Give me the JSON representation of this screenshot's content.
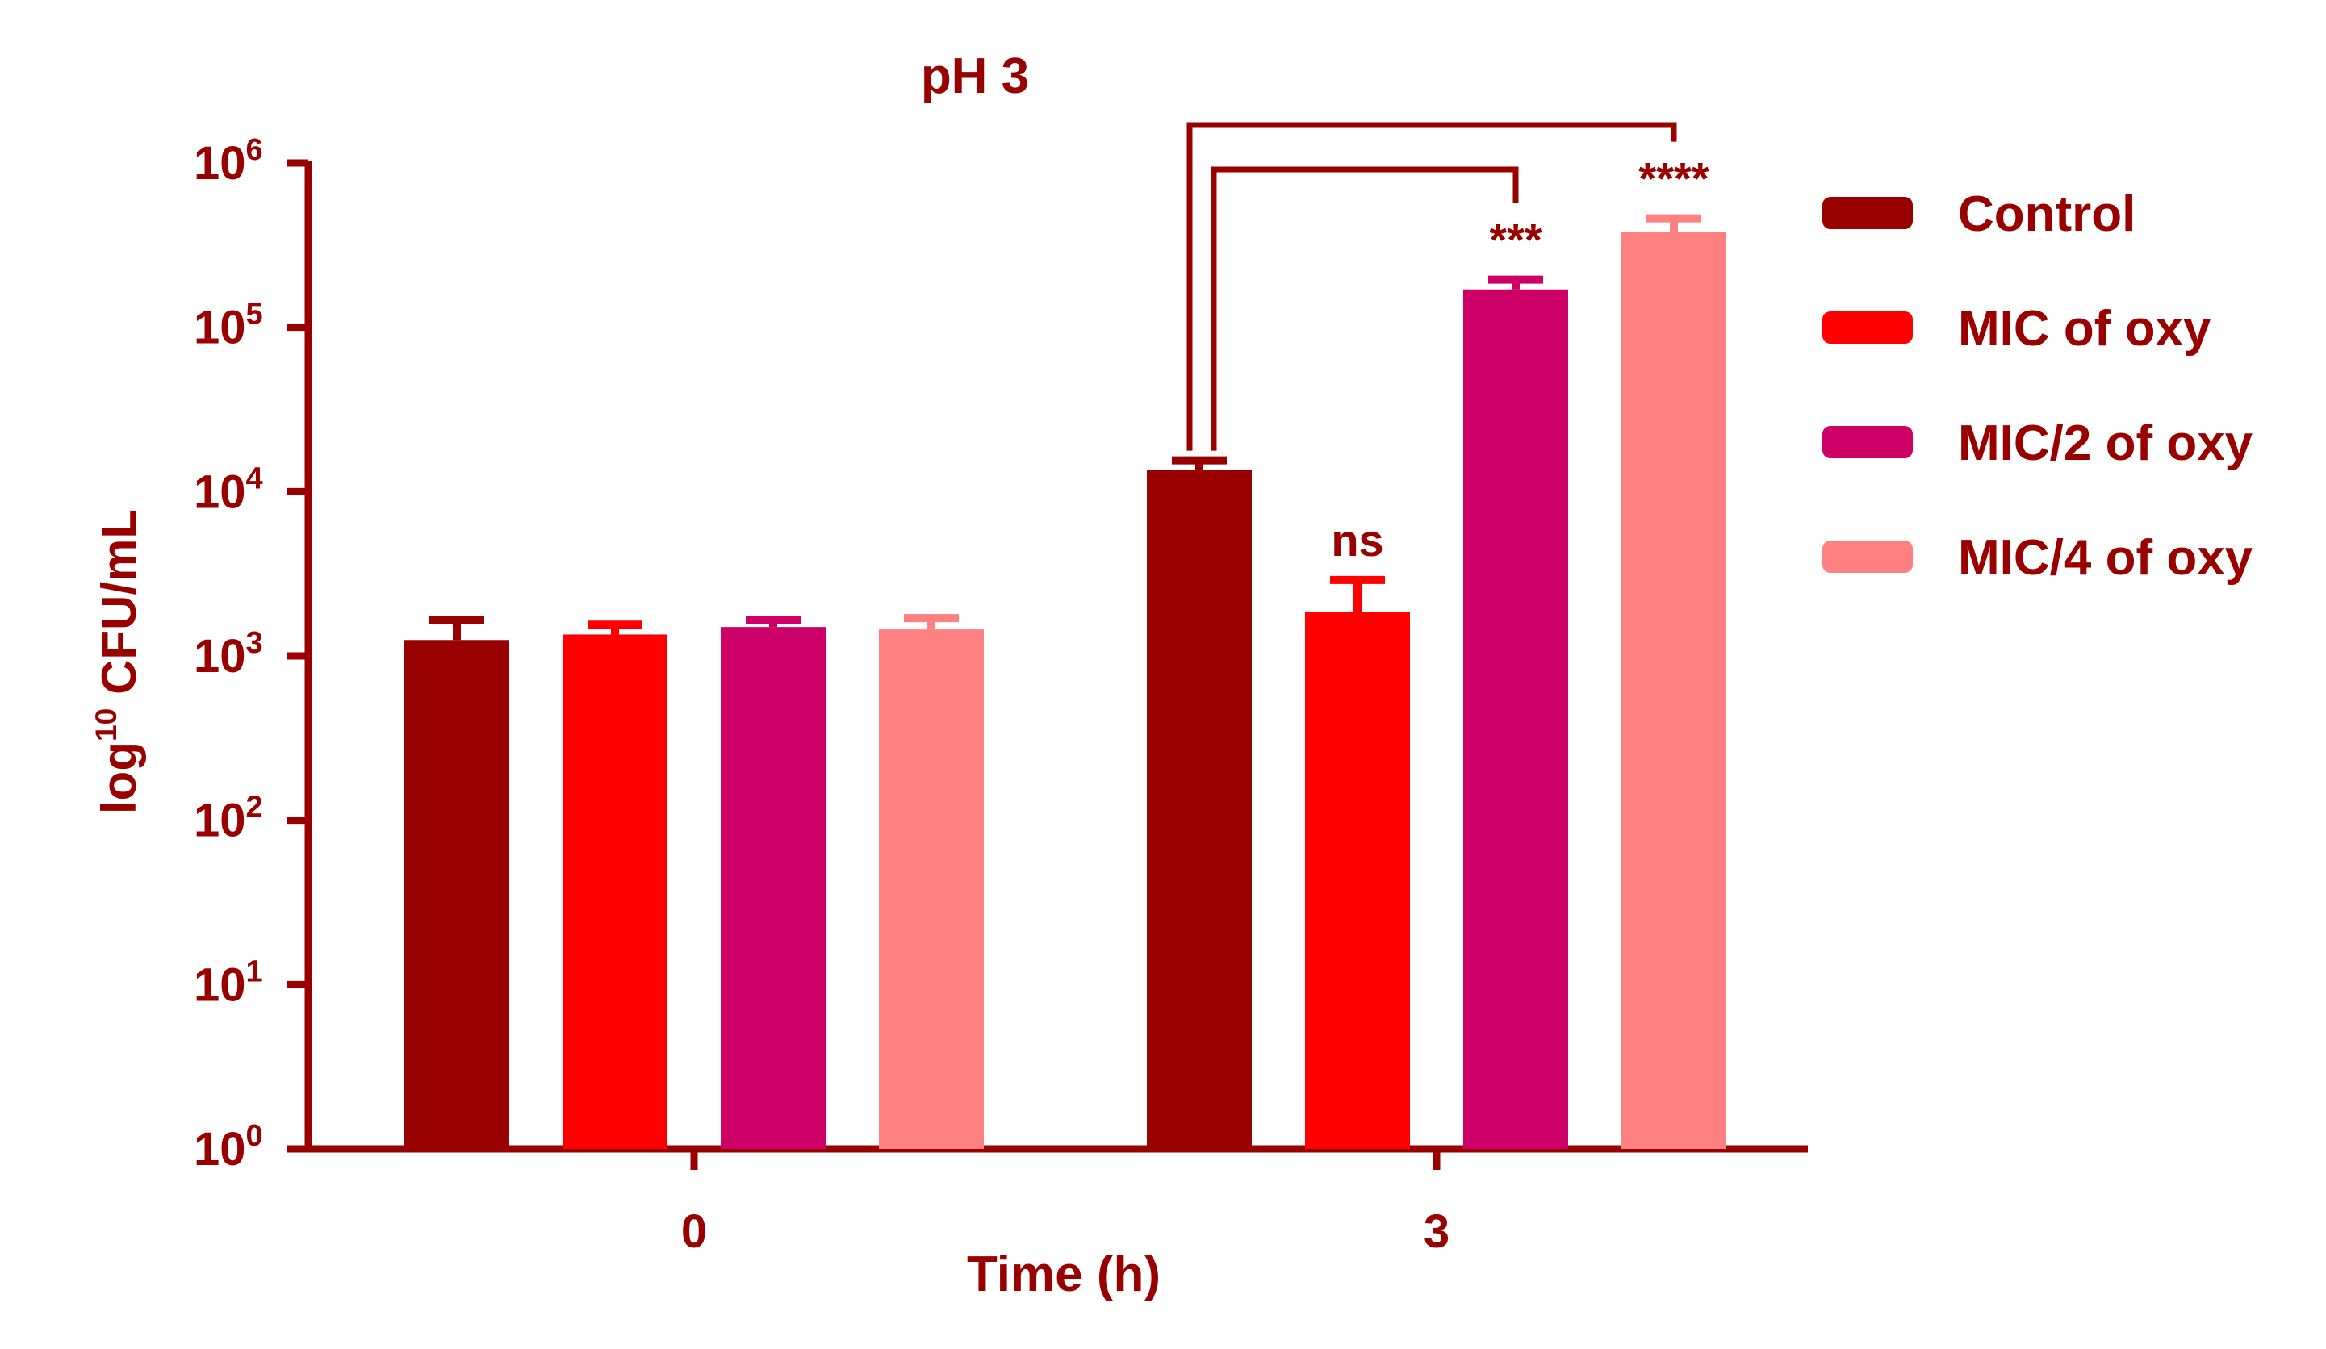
{
  "chart_data": {
    "type": "bar",
    "title": "pH 3",
    "xlabel": "Time (h)",
    "ylabel": {
      "base": "log",
      "sup": "10",
      "rest": " CFU/mL"
    },
    "yscale": "log",
    "ylim": [
      1,
      1000000
    ],
    "yticks": [
      {
        "base": "10",
        "exp": "0",
        "value": 1
      },
      {
        "base": "10",
        "exp": "1",
        "value": 10
      },
      {
        "base": "10",
        "exp": "2",
        "value": 100
      },
      {
        "base": "10",
        "exp": "3",
        "value": 1000
      },
      {
        "base": "10",
        "exp": "4",
        "value": 10000
      },
      {
        "base": "10",
        "exp": "5",
        "value": 100000
      },
      {
        "base": "10",
        "exp": "6",
        "value": 1000000
      }
    ],
    "categories": [
      "0",
      "3"
    ],
    "series": [
      {
        "name": "Control",
        "color": "#990000",
        "values": [
          1250,
          13500
        ],
        "errors": [
          1650,
          15500
        ]
      },
      {
        "name": "MIC of oxy",
        "color": "#ff0000",
        "values": [
          1350,
          1850
        ],
        "errors": [
          1550,
          2900
        ]
      },
      {
        "name": "MIC/2 of oxy",
        "color": "#cc0066",
        "values": [
          1500,
          170000
        ],
        "errors": [
          1650,
          195000
        ]
      },
      {
        "name": "MIC/4 of oxy",
        "color": "#ff8080",
        "values": [
          1450,
          380000
        ],
        "errors": [
          1700,
          460000
        ]
      }
    ],
    "significance": [
      {
        "category": 1,
        "series": 1,
        "label": "ns"
      },
      {
        "category": 1,
        "series": 2,
        "label": "***",
        "bracket_from_series": 0
      },
      {
        "category": 1,
        "series": 3,
        "label": "****",
        "bracket_from_series": 0
      }
    ],
    "legend_position": "right"
  },
  "colors": {
    "axis": "#990000",
    "text": "#990000"
  }
}
